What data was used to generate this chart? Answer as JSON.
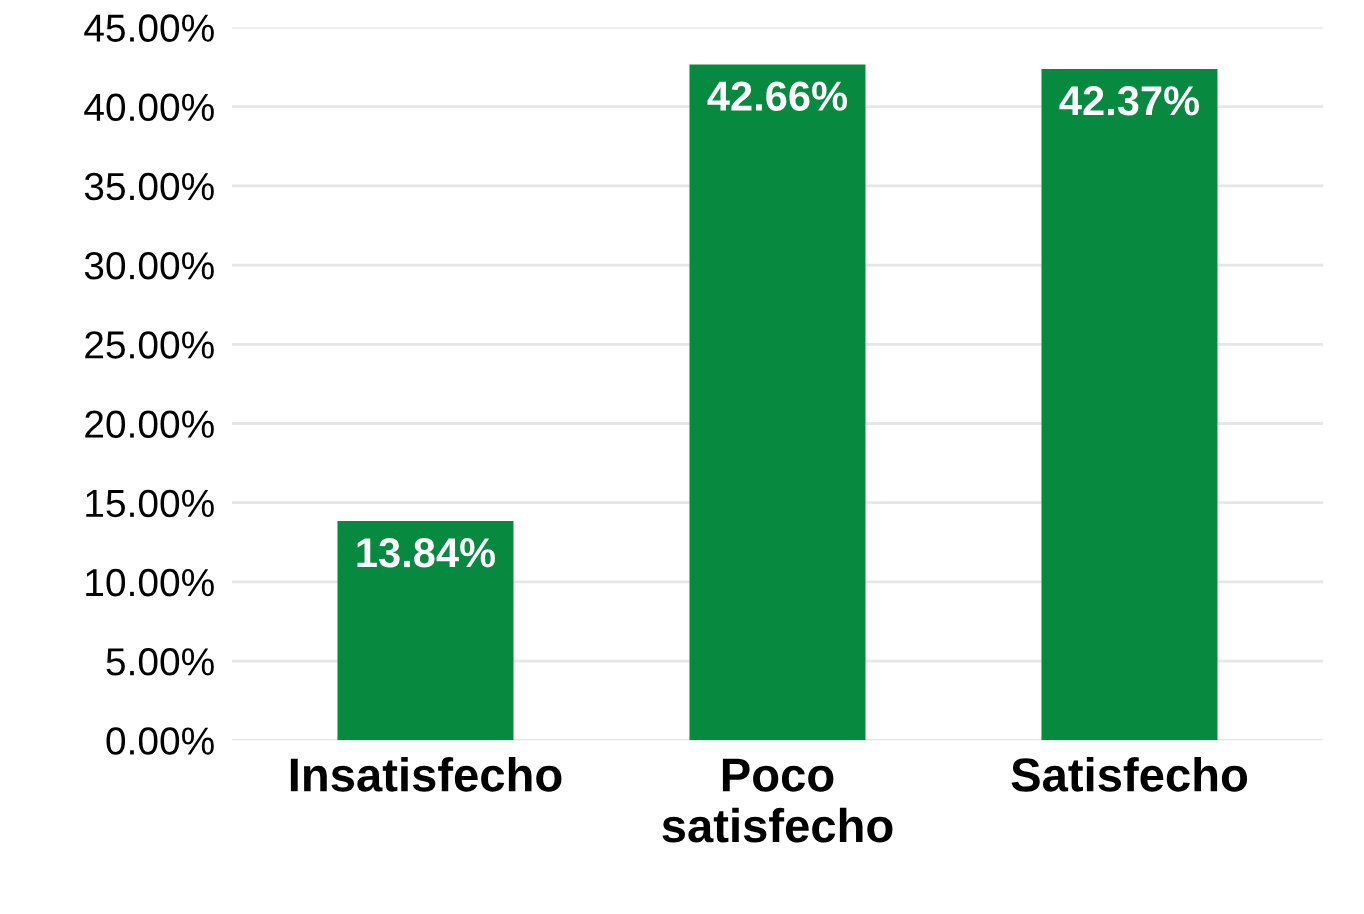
{
  "chart_data": {
    "type": "bar",
    "categories": [
      "Insatisfecho",
      "Poco\nsatisfecho",
      "Satisfecho"
    ],
    "values": [
      13.84,
      42.66,
      42.37
    ],
    "value_labels": [
      "13.84%",
      "42.66%",
      "42.37%"
    ],
    "color": "#078a3f",
    "ylim": [
      0,
      45
    ],
    "yticks": [
      {
        "value": 0,
        "label": "0.00%"
      },
      {
        "value": 5,
        "label": "5.00%"
      },
      {
        "value": 10,
        "label": "10.00%"
      },
      {
        "value": 15,
        "label": "15.00%"
      },
      {
        "value": 20,
        "label": "20.00%"
      },
      {
        "value": 25,
        "label": "25.00%"
      },
      {
        "value": 30,
        "label": "30.00%"
      },
      {
        "value": 35,
        "label": "35.00%"
      },
      {
        "value": 40,
        "label": "40.00%"
      },
      {
        "value": 45,
        "label": "45.00%"
      }
    ],
    "grid": "y"
  }
}
